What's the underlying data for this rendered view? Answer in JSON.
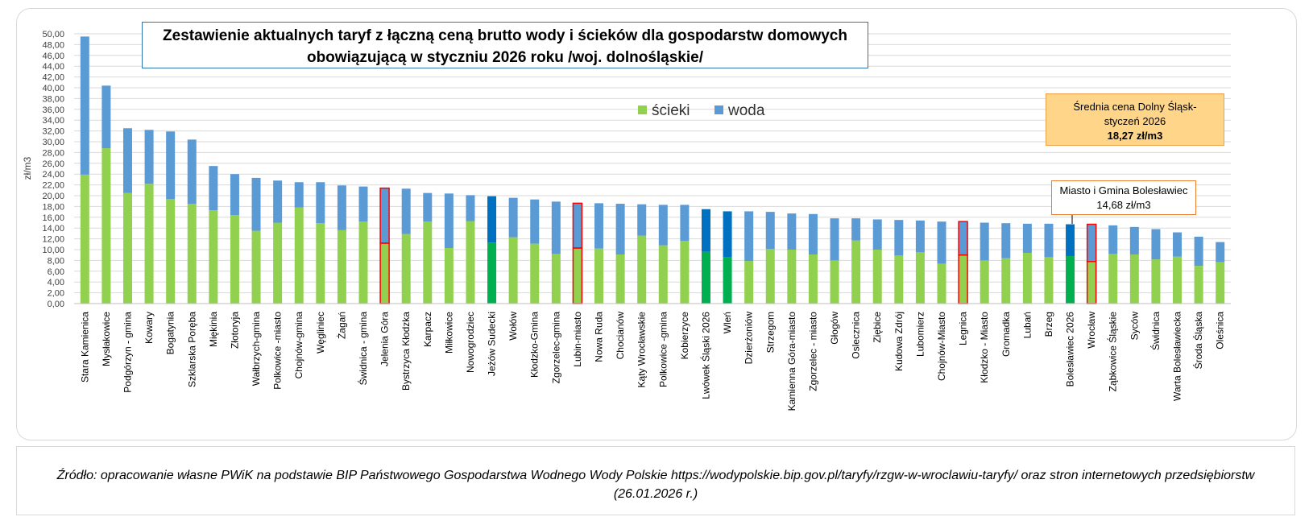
{
  "title": {
    "line1": "Zestawienie aktualnych taryf  z łączną ceną brutto wody i ścieków dla gospodarstw domowych",
    "line2": "obowiązującą w styczniu 2026 roku  /woj. dolnośląskie/"
  },
  "legend": {
    "scieki": "ścieki",
    "woda": "woda"
  },
  "avg_box": {
    "line1": "Średnia cena Dolny Śląsk-",
    "line2": "styczeń 2026",
    "value": "18,27 zł/m3"
  },
  "city_box": {
    "line1": "Miasto i Gmina Bolesławiec",
    "line2": "14,68 zł/m3"
  },
  "source": "Źródło:  opracowanie własne PWiK na podstawie BIP Państwowego Gospodarstwa Wodnego Wody Polskie https://wodypolskie.bip.gov.pl/taryfy/rzgw-w-wroclawiu-taryfy/ oraz stron internetowych przedsiębiorstw (26.01.2026 r.)",
  "colors": {
    "scieki": "#92d050",
    "woda": "#5b9bd5",
    "scieki_highlight": "#00b050",
    "woda_highlight": "#0070c0",
    "outline_highlight": "#ff0000"
  },
  "chart_data": {
    "type": "bar",
    "stacked": true,
    "ylabel": "zł/m3",
    "ylim": [
      0,
      50
    ],
    "ytick_step": 2,
    "grid": true,
    "legend_position": "top-center",
    "categories": [
      "Stara Kamienica",
      "Mysłakowice",
      "Podgórzyn - gmina",
      "Kowary",
      "Bogatynia",
      "Szklarska Poręba",
      "Miękinia",
      "Złotoryja",
      "Wałbrzych-gmina",
      "Polkowice -miasto",
      "Chojnów-gmina",
      "Węgliniec",
      "Żagań",
      "Świdnica - gmina",
      "Jelenia Góra",
      "Bystrzyca Kłodzka",
      "Karpacz",
      "Miłkowice",
      "Nowogrodziec",
      "Jeżów Sudecki",
      "Wołów",
      "Kłodzko-Gmina",
      "Zgorzelec-gmina",
      "Lubin-miasto",
      "Nowa Ruda",
      "Chocianów",
      "Kąty Wrocławskie",
      "Polkowice -gmina",
      "Kobierzyce",
      "Lwówek Śląski 2026",
      "Wleń",
      "Dzierżoniów",
      "Strzegom",
      "Kamienna Góra-miasto",
      "Zgorzelec - miasto",
      "Głogów",
      "Oslecznica",
      "Ziębice",
      "Kudowa Zdrój",
      "Lubomierz",
      "Chojnów-Miasto",
      "Legnica",
      "Kłodzko - Miasto",
      "Gromadka",
      "Lubań",
      "Brzeg",
      "Bolesławiec 2026",
      "Wrocław",
      "Ząbkowice Śląskie",
      "Syców",
      "Świdnica",
      "Warta Bolesławiecka",
      "Środa Śląska",
      "Oleśnica"
    ],
    "series": [
      {
        "name": "ścieki",
        "values": [
          23.9,
          28.8,
          20.5,
          22.2,
          19.4,
          18.5,
          17.3,
          16.4,
          13.5,
          15.0,
          17.8,
          14.9,
          13.6,
          15.2,
          11.2,
          12.9,
          15.2,
          10.3,
          15.3,
          11.3,
          12.3,
          11.1,
          9.2,
          10.3,
          10.2,
          9.1,
          12.6,
          10.8,
          11.6,
          9.6,
          8.6,
          7.9,
          10.1,
          10.0,
          9.1,
          8.0,
          11.7,
          10.0,
          8.9,
          9.5,
          7.4,
          9.0,
          8.0,
          8.4,
          9.4,
          8.6,
          8.8,
          7.8,
          9.2,
          9.1,
          8.2,
          8.7,
          7.0,
          7.7
        ]
      },
      {
        "name": "woda",
        "values": [
          25.6,
          11.6,
          12.0,
          10.0,
          12.5,
          11.9,
          8.2,
          7.6,
          9.8,
          7.8,
          4.7,
          7.6,
          8.3,
          6.5,
          10.2,
          8.4,
          5.3,
          10.1,
          4.8,
          8.6,
          7.3,
          8.2,
          9.7,
          8.3,
          8.4,
          9.4,
          5.8,
          7.5,
          6.7,
          7.9,
          8.5,
          9.2,
          6.9,
          6.7,
          7.5,
          7.8,
          4.1,
          5.6,
          6.6,
          5.9,
          7.8,
          6.2,
          7.0,
          6.5,
          5.4,
          6.2,
          5.9,
          6.9,
          5.3,
          5.1,
          5.6,
          4.5,
          5.4,
          3.7
        ]
      }
    ],
    "highlighted_fill": [
      "Jeżów Sudecki",
      "Lwówek Śląski 2026",
      "Wleń",
      "Bolesławiec 2026"
    ],
    "highlighted_outline": [
      "Jelenia Góra",
      "Lubin-miasto",
      "Legnica",
      "Wrocław"
    ]
  }
}
